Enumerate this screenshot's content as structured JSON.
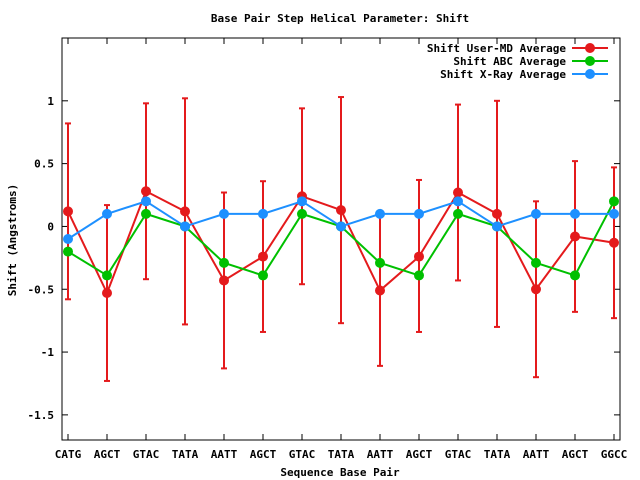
{
  "chart_data": {
    "type": "line",
    "title": "Base Pair Step Helical Parameter: Shift",
    "xlabel": "Sequence Base Pair",
    "ylabel": "Shift (Angstroms)",
    "categories": [
      "CATG",
      "AGCT",
      "GTAC",
      "TATA",
      "AATT",
      "AGCT",
      "GTAC",
      "TATA",
      "AATT",
      "AGCT",
      "GTAC",
      "TATA",
      "AATT",
      "AGCT",
      "GGCC"
    ],
    "ylim": [
      -1.7,
      1.5
    ],
    "yticks": [
      -1.5,
      -1,
      -0.5,
      0,
      0.5,
      1
    ],
    "ytick_labels": [
      "-1.5",
      "-1",
      "-0.5",
      "0",
      "0.5",
      "1"
    ],
    "legend_position": "top-right",
    "series": [
      {
        "name": "Shift User-MD Average",
        "color": "#e41a1c",
        "values": [
          0.12,
          -0.53,
          0.28,
          0.12,
          -0.43,
          -0.24,
          0.24,
          0.13,
          -0.51,
          -0.24,
          0.27,
          0.1,
          -0.5,
          -0.08,
          -0.13
        ],
        "err_low": [
          -0.58,
          -1.23,
          -0.42,
          -0.78,
          -1.13,
          -0.84,
          -0.46,
          -0.77,
          -1.11,
          -0.84,
          -0.43,
          -0.8,
          -1.2,
          -0.68,
          -0.73
        ],
        "err_high": [
          0.82,
          0.17,
          0.98,
          1.02,
          0.27,
          0.36,
          0.94,
          1.03,
          0.09,
          0.37,
          0.97,
          1.0,
          0.2,
          0.52,
          0.47
        ]
      },
      {
        "name": "Shift ABC Average",
        "color": "#00c000",
        "values": [
          -0.2,
          -0.39,
          0.1,
          0.0,
          -0.29,
          -0.39,
          0.1,
          0.0,
          -0.29,
          -0.39,
          0.1,
          0.0,
          -0.29,
          -0.39,
          0.2
        ]
      },
      {
        "name": "Shift X-Ray Average",
        "color": "#1e90ff",
        "values": [
          -0.1,
          0.1,
          0.2,
          0.0,
          0.1,
          0.1,
          0.2,
          0.0,
          0.1,
          0.1,
          0.2,
          0.0,
          0.1,
          0.1,
          0.1
        ]
      }
    ]
  }
}
